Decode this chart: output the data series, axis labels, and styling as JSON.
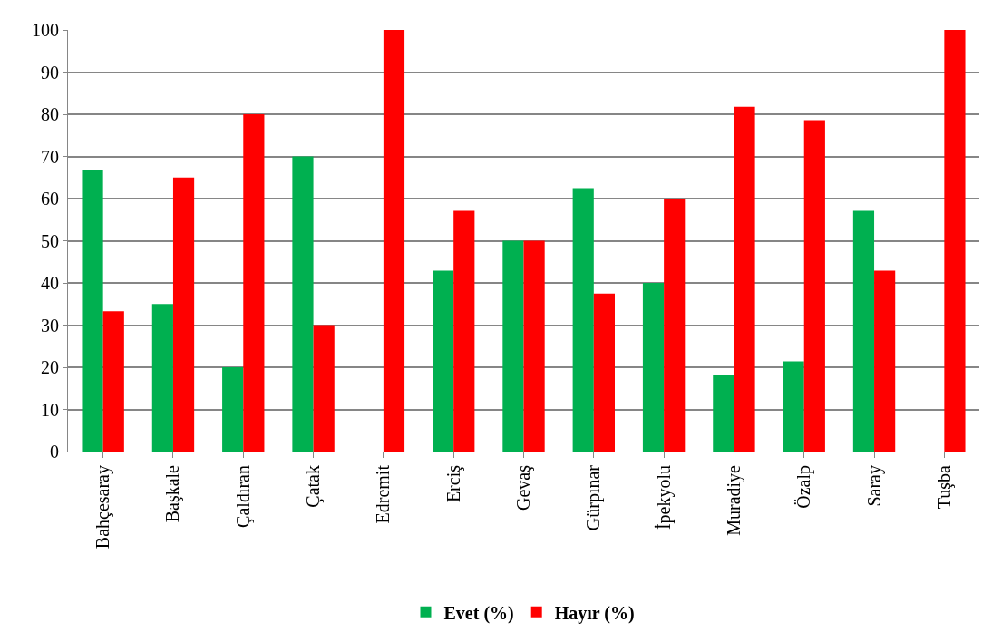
{
  "chart_data": {
    "type": "bar",
    "categories": [
      "Bahçesaray",
      "Başkale",
      "Çaldıran",
      "Çatak",
      "Edremit",
      "Erciş",
      "Gevaş",
      "Gürpınar",
      "İpekyolu",
      "Muradiye",
      "Özalp",
      "Saray",
      "Tuşba"
    ],
    "series": [
      {
        "name": "Evet (%)",
        "color": "#00b050",
        "values": [
          66.7,
          35,
          20,
          70,
          0,
          42.9,
          50,
          62.5,
          40,
          18.2,
          21.4,
          57.1,
          0
        ]
      },
      {
        "name": "Hayır (%)",
        "color": "#ff0000",
        "values": [
          33.3,
          65,
          80,
          30,
          100,
          57.1,
          50,
          37.5,
          60,
          81.8,
          78.6,
          42.9,
          100
        ]
      }
    ],
    "ylim": [
      0,
      100
    ],
    "yticks": [
      0,
      10,
      20,
      30,
      40,
      50,
      60,
      70,
      80,
      90,
      100
    ],
    "grid": "y",
    "legend": "bottom"
  }
}
